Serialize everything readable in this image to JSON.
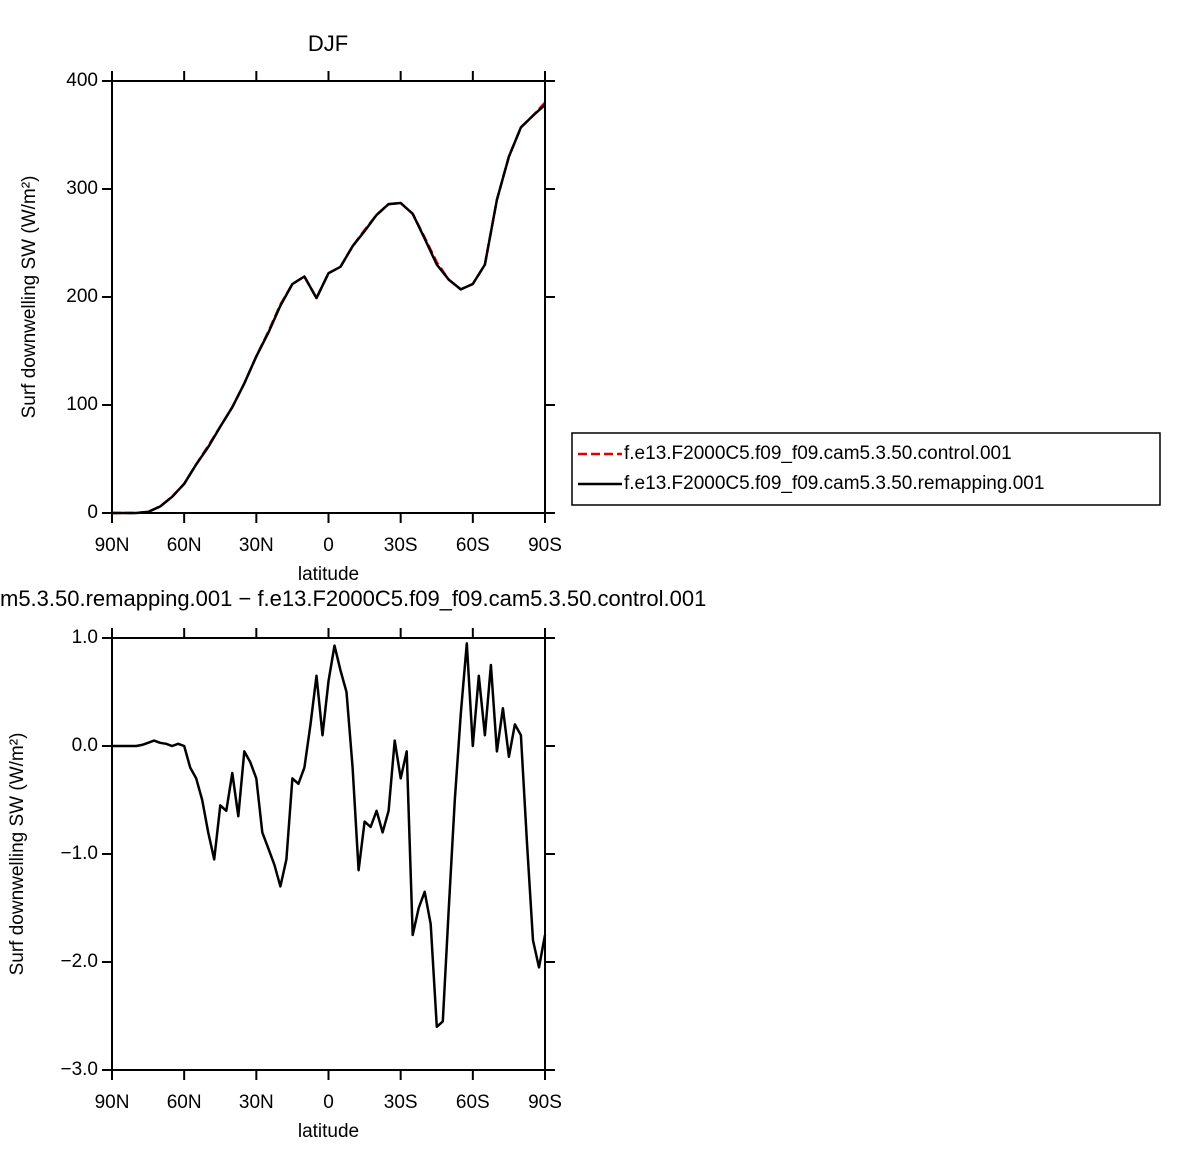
{
  "chart_data": [
    {
      "type": "line",
      "title": "DJF",
      "xlabel": "latitude",
      "ylabel": "Surf downwelling SW (W/m²)",
      "x": [
        90,
        85,
        80,
        75,
        70,
        65,
        60,
        55,
        50,
        45,
        40,
        35,
        30,
        25,
        20,
        15,
        10,
        5,
        0,
        -5,
        -10,
        -15,
        -20,
        -25,
        -30,
        -35,
        -40,
        -45,
        -50,
        -55,
        -60,
        -65,
        -70,
        -75,
        -80,
        -85,
        -90
      ],
      "series": [
        {
          "name": "f.e13.F2000C5.f09_f09.cam5.3.50.control.001",
          "color": "#e00000",
          "line_style": "dashed",
          "values": [
            0,
            0,
            0,
            1,
            6,
            15,
            27,
            45,
            62,
            80,
            98,
            120,
            145,
            168,
            193,
            212,
            219,
            199,
            222,
            228,
            247,
            262,
            276,
            286,
            287,
            277,
            255,
            232,
            216,
            207,
            212,
            230,
            290,
            330,
            357,
            368,
            380
          ]
        },
        {
          "name": "f.e13.F2000C5.f09_f09.cam5.3.50.remapping.001",
          "color": "#000000",
          "line_style": "solid",
          "values": [
            0,
            0,
            0,
            1,
            6,
            15,
            27,
            45,
            61,
            80,
            98,
            120,
            145,
            167,
            192,
            212,
            219,
            199,
            222,
            228,
            247,
            261,
            276,
            286,
            287,
            277,
            254,
            230,
            216,
            207,
            212,
            230,
            290,
            330,
            357,
            368,
            378
          ]
        }
      ],
      "xlim": [
        90,
        -90
      ],
      "xticks": [
        {
          "value": 90,
          "label": "90N"
        },
        {
          "value": 60,
          "label": "60N"
        },
        {
          "value": 30,
          "label": "30N"
        },
        0,
        {
          "value": -30,
          "label": "30S"
        },
        {
          "value": -60,
          "label": "60S"
        },
        {
          "value": -90,
          "label": "90S"
        }
      ],
      "ylim": [
        0,
        400
      ],
      "yticks": [
        0,
        100,
        200,
        300,
        400
      ],
      "legend": "right"
    },
    {
      "type": "line",
      "title": "m5.3.50.remapping.001 − f.e13.F2000C5.f09_f09.cam5.3.50.control.001",
      "xlabel": "latitude",
      "ylabel": "Surf downwelling SW (W/m²)",
      "x": [
        90,
        87.5,
        85,
        82.5,
        80,
        77.5,
        75,
        72.5,
        70,
        67.5,
        65,
        62.5,
        60,
        57.5,
        55,
        52.5,
        50,
        47.5,
        45,
        42.5,
        40,
        37.5,
        35,
        32.5,
        30,
        27.5,
        25,
        22.5,
        20,
        17.5,
        15,
        12.5,
        10,
        7.5,
        5,
        2.5,
        0,
        -2.5,
        -5,
        -7.5,
        -10,
        -12.5,
        -15,
        -17.5,
        -20,
        -22.5,
        -25,
        -27.5,
        -30,
        -32.5,
        -35,
        -37.5,
        -40,
        -42.5,
        -45,
        -47.5,
        -50,
        -52.5,
        -55,
        -57.5,
        -60,
        -62.5,
        -65,
        -67.5,
        -70,
        -72.5,
        -75,
        -77.5,
        -80,
        -82.5,
        -85,
        -87.5,
        -90
      ],
      "series": [
        {
          "name": null,
          "color": "#000000",
          "line_style": "solid",
          "values": [
            0,
            0,
            0,
            0,
            0,
            0.01,
            0.03,
            0.05,
            0.03,
            0.02,
            0,
            0.02,
            0,
            -0.2,
            -0.3,
            -0.5,
            -0.8,
            -1.05,
            -0.55,
            -0.6,
            -0.25,
            -0.65,
            -0.05,
            -0.15,
            -0.3,
            -0.8,
            -0.95,
            -1.1,
            -1.3,
            -1.05,
            -0.3,
            -0.35,
            -0.2,
            0.2,
            0.65,
            0.1,
            0.6,
            0.93,
            0.7,
            0.5,
            -0.2,
            -1.15,
            -0.7,
            -0.75,
            -0.6,
            -0.8,
            -0.6,
            0.05,
            -0.3,
            -0.05,
            -1.75,
            -1.5,
            -1.35,
            -1.65,
            -2.6,
            -2.55,
            -1.5,
            -0.5,
            0.3,
            0.95,
            0,
            0.65,
            0.1,
            0.75,
            -0.05,
            0.35,
            -0.1,
            0.2,
            0.1,
            -0.9,
            -1.8,
            -2.05,
            -1.75
          ]
        }
      ],
      "xlim": [
        90,
        -90
      ],
      "xticks": [
        {
          "value": 90,
          "label": "90N"
        },
        {
          "value": 60,
          "label": "60N"
        },
        {
          "value": 30,
          "label": "30N"
        },
        0,
        {
          "value": -30,
          "label": "30S"
        },
        {
          "value": -60,
          "label": "60S"
        },
        {
          "value": -90,
          "label": "90S"
        }
      ],
      "ylim": [
        -3,
        1
      ],
      "yticks": [
        {
          "value": -3,
          "label": "−3.0"
        },
        {
          "value": -2,
          "label": "−2.0"
        },
        {
          "value": -1,
          "label": "−1.0"
        },
        {
          "value": 0,
          "label": "0.0"
        },
        {
          "value": 1,
          "label": "1.0"
        }
      ]
    }
  ]
}
